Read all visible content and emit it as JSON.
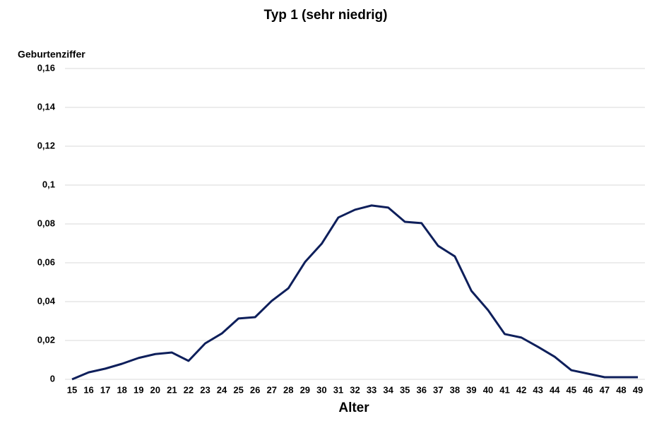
{
  "chart_data": {
    "type": "line",
    "title": "Typ 1 (sehr niedrig)",
    "y_label": "Geburtenziffer",
    "x_label": "Alter",
    "categories": [
      "15",
      "16",
      "17",
      "18",
      "19",
      "20",
      "21",
      "22",
      "23",
      "24",
      "25",
      "26",
      "27",
      "28",
      "29",
      "30",
      "31",
      "32",
      "33",
      "34",
      "35",
      "36",
      "37",
      "38",
      "39",
      "40",
      "41",
      "42",
      "43",
      "44",
      "45",
      "46",
      "47",
      "48",
      "49"
    ],
    "values": [
      0,
      0.0036,
      0.0055,
      0.008,
      0.011,
      0.013,
      0.0138,
      0.0095,
      0.0185,
      0.0236,
      0.0313,
      0.032,
      0.0404,
      0.0469,
      0.0604,
      0.0698,
      0.0833,
      0.0873,
      0.0895,
      0.0884,
      0.0811,
      0.0804,
      0.0687,
      0.0633,
      0.0455,
      0.0356,
      0.0233,
      0.0215,
      0.0167,
      0.0116,
      0.0047,
      0.0029,
      0.0011,
      0.0011,
      0.0011
    ],
    "color": "#0e1f5b",
    "ylim": [
      0,
      0.16
    ],
    "yticks": [
      0,
      {
        "value": 0.02,
        "label": "0,02"
      },
      {
        "value": 0.04,
        "label": "0,04"
      },
      {
        "value": 0.06,
        "label": "0,06"
      },
      {
        "value": 0.08,
        "label": "0,08"
      },
      {
        "value": 0.1,
        "label": "0,1"
      },
      {
        "value": 0.12,
        "label": "0,12"
      },
      {
        "value": 0.14,
        "label": "0,14"
      },
      {
        "value": 0.16,
        "label": "0,16"
      }
    ],
    "grid": true
  }
}
